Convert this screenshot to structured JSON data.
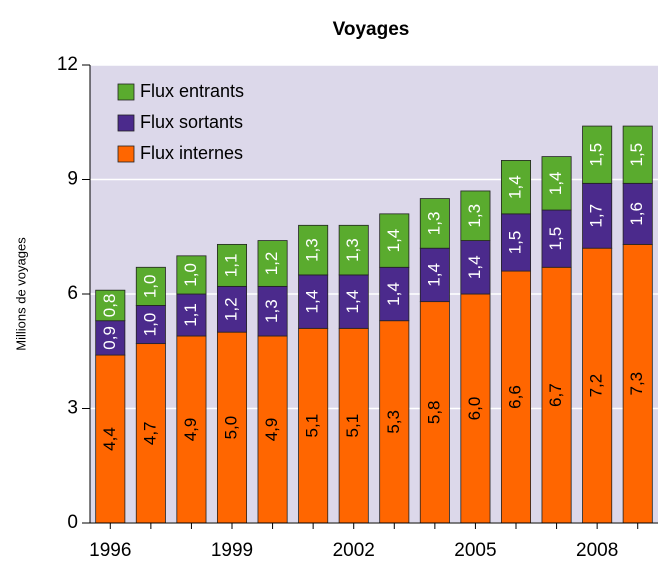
{
  "chart_data": {
    "type": "stacked-bar",
    "title": "Voyages",
    "y_label": "Millions de voyages",
    "categories": [
      "1996",
      null,
      null,
      "1999",
      null,
      null,
      "2002",
      null,
      null,
      "2005",
      null,
      null,
      "2008",
      null
    ],
    "series": [
      {
        "name": "Flux internes",
        "color": "#ff6600",
        "values": [
          4.4,
          4.7,
          4.9,
          5.0,
          4.9,
          5.1,
          5.1,
          5.3,
          5.8,
          6.0,
          6.6,
          6.7,
          7.2,
          7.3
        ],
        "value_labels": [
          "4,4",
          "4,7",
          "4,9",
          "5,0",
          "4,9",
          "5,1",
          "5,1",
          "5,3",
          "5,8",
          "6,0",
          "6,6",
          "6,7",
          "7,2",
          "7,3"
        ]
      },
      {
        "name": "Flux sortants",
        "color": "#4b2a8c",
        "values": [
          0.9,
          1.0,
          1.1,
          1.2,
          1.3,
          1.4,
          1.4,
          1.4,
          1.4,
          1.4,
          1.5,
          1.5,
          1.7,
          1.6
        ],
        "value_labels": [
          "0,9",
          "1,0",
          "1,1",
          "1,2",
          "1,3",
          "1,4",
          "1,4",
          "1,4",
          "1,4",
          "1,4",
          "1,5",
          "1,5",
          "1,7",
          "1,6"
        ]
      },
      {
        "name": "Flux entrants",
        "color": "#5aab2e",
        "values": [
          0.8,
          1.0,
          1.0,
          1.1,
          1.2,
          1.3,
          1.3,
          1.4,
          1.3,
          1.3,
          1.4,
          1.4,
          1.5,
          1.5
        ],
        "value_labels": [
          "0,8",
          "1,0",
          "1,0",
          "1,1",
          "1,2",
          "1,3",
          "1,3",
          "1,4",
          "1,3",
          "1,3",
          "1,4",
          "1,4",
          "1,5",
          "1,5"
        ]
      }
    ],
    "ylim": [
      0,
      12
    ],
    "yticks": [
      0,
      3,
      6,
      9,
      12
    ],
    "grid": true,
    "legend": "top-left"
  }
}
